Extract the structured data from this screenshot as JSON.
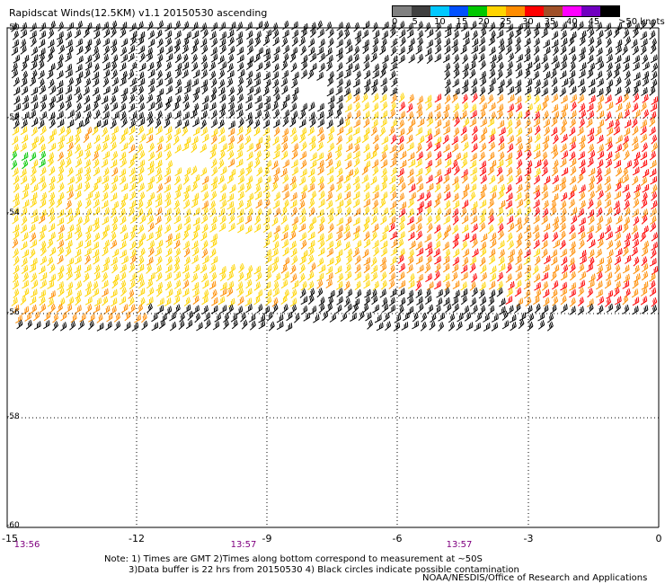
{
  "title": "Rapidscat Winds(12.5KM) v1.1 20150530 ascending",
  "legend": {
    "ticks": [
      "0",
      "5",
      "10",
      "15",
      "20",
      "25",
      "30",
      "35",
      "40",
      "45"
    ],
    "units": ">50 knots",
    "colors": [
      "#808080",
      "#404040",
      "#00c8ff",
      "#0050ff",
      "#00c800",
      "#ffd400",
      "#ff8c00",
      "#ff0000",
      "#a05028",
      "#ff00ff",
      "#7000c0",
      "#000000"
    ]
  },
  "map": {
    "lon_range": [
      -15,
      0
    ],
    "lat_range": [
      -50,
      -60
    ],
    "y_labels": [
      "-50",
      "-52",
      "-54",
      "-56",
      "-58",
      "-60"
    ],
    "x_labels": [
      "-15",
      "-12",
      "-9",
      "-6",
      "-3",
      "0"
    ],
    "grid": "dotted",
    "times": [
      "13:56",
      "13:57",
      "13:57"
    ]
  },
  "note": {
    "line1": "Note: 1) Times are GMT 2)Times along bottom correspond to measurement at ~50S",
    "line2": "3)Data buffer is 22 hrs from 20150530 4) Black circles indicate possible contamination"
  },
  "credit": "NOAA/NESDIS/Office of Research and Applications"
}
